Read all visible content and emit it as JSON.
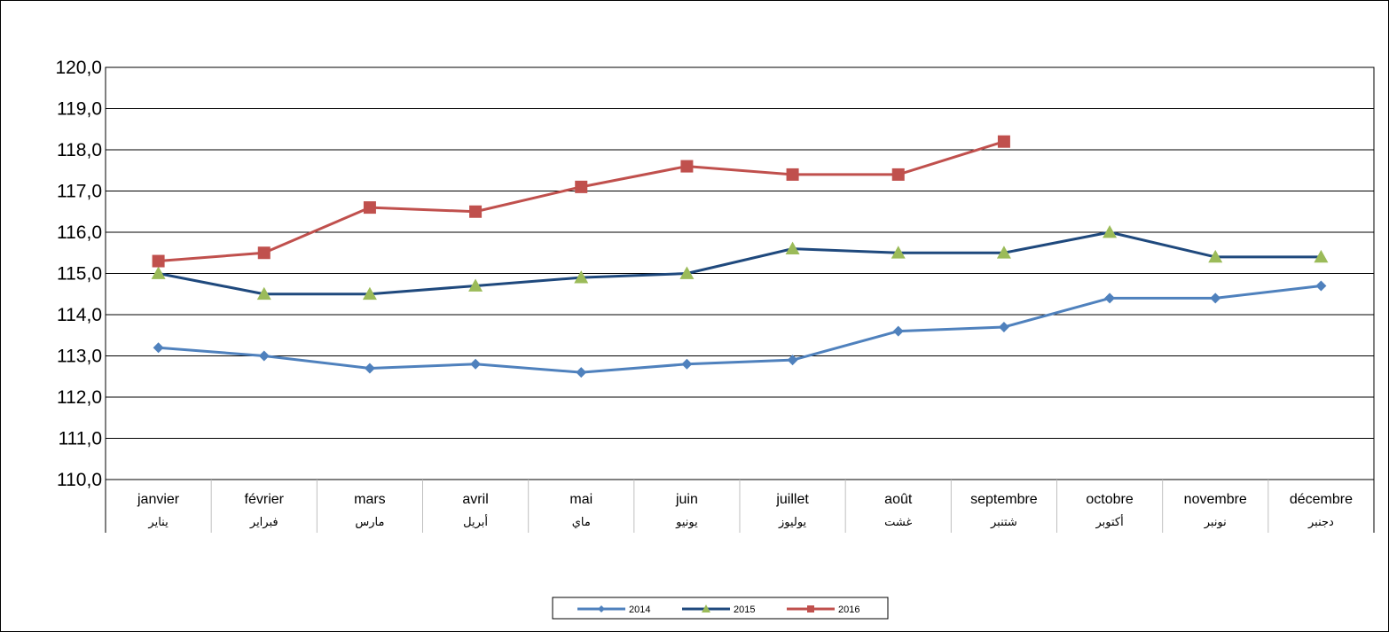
{
  "chart_data": {
    "type": "line",
    "title": "",
    "xlabel": "",
    "ylabel": "",
    "ylim": [
      110,
      120
    ],
    "ytick_step": 1,
    "ytick_labels": [
      "110,0",
      "111,0",
      "112,0",
      "113,0",
      "114,0",
      "115,0",
      "116,0",
      "117,0",
      "118,0",
      "119,0",
      "120,0"
    ],
    "grid": "horizontal",
    "legend_position": "bottom-center",
    "categories": [
      {
        "fr": "janvier",
        "ar": "يناير"
      },
      {
        "fr": "février",
        "ar": "فبراير"
      },
      {
        "fr": "mars",
        "ar": "مارس"
      },
      {
        "fr": "avril",
        "ar": "أبريل"
      },
      {
        "fr": "mai",
        "ar": "ماي"
      },
      {
        "fr": "juin",
        "ar": "يونيو"
      },
      {
        "fr": "juillet",
        "ar": "يوليوز"
      },
      {
        "fr": "août",
        "ar": "غشت"
      },
      {
        "fr": "septembre",
        "ar": "شتنبر"
      },
      {
        "fr": "octobre",
        "ar": "أكتوبر"
      },
      {
        "fr": "novembre",
        "ar": "نونبر"
      },
      {
        "fr": "décembre",
        "ar": "دجنبر"
      }
    ],
    "series": [
      {
        "name": "2014",
        "color": "#4f81bd",
        "marker": "diamond",
        "values": [
          113.2,
          113.0,
          112.7,
          112.8,
          112.6,
          112.8,
          112.9,
          113.6,
          113.7,
          114.4,
          114.4,
          114.7
        ]
      },
      {
        "name": "2015",
        "color": "#1f497d",
        "marker_color": "#9bbb59",
        "marker": "triangle",
        "values": [
          115.0,
          114.5,
          114.5,
          114.7,
          114.9,
          115.0,
          115.6,
          115.5,
          115.5,
          116.0,
          115.4,
          115.4
        ]
      },
      {
        "name": "2016",
        "color": "#c0504d",
        "marker": "square",
        "values": [
          115.3,
          115.5,
          116.6,
          116.5,
          117.1,
          117.6,
          117.4,
          117.4,
          118.2,
          null,
          null,
          null
        ]
      }
    ]
  }
}
